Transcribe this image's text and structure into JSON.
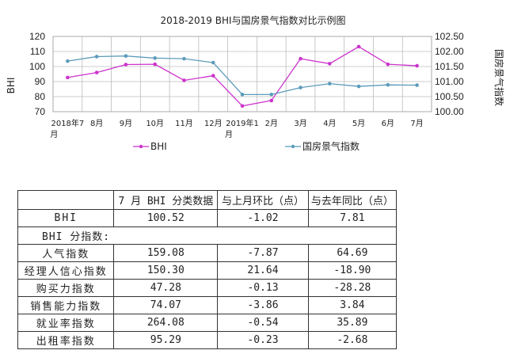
{
  "chart_data": {
    "type": "line",
    "title": "2018-2019 BHI与国房景气指数对比示例图",
    "categories": [
      "2018年7月",
      "8月",
      "9月",
      "10月",
      "11月",
      "12月",
      "2019年1月",
      "2月",
      "3月",
      "4月",
      "5月",
      "6月",
      "7月"
    ],
    "series": [
      {
        "name": "BHI",
        "axis": "left",
        "color": "#cc33cc",
        "values": [
          92.7,
          96.0,
          101.3,
          101.5,
          90.8,
          93.9,
          73.8,
          77.4,
          105.2,
          101.9,
          113.2,
          101.5,
          100.5
        ]
      },
      {
        "name": "国房景气指数",
        "axis": "right",
        "color": "#5b9bba",
        "values": [
          101.68,
          101.83,
          101.85,
          101.78,
          101.76,
          101.63,
          100.57,
          100.57,
          100.8,
          100.93,
          100.84,
          100.89,
          100.88
        ]
      }
    ],
    "ylabel": "BHI",
    "ylim": [
      70,
      120
    ],
    "yticks": [
      "120",
      "110",
      "100",
      "90",
      "80",
      "70"
    ],
    "y2label": "国房景气指数",
    "y2lim": [
      100.0,
      102.5
    ],
    "y2ticks": [
      "102.50",
      "102.00",
      "101.50",
      "101.00",
      "100.50",
      "100.00"
    ],
    "grid": true,
    "legend_position": "bottom"
  },
  "table": {
    "headers": [
      "",
      "7 月 BHI 分类数据",
      "与上月环比（点）",
      "与去年同比（点）"
    ],
    "rows": [
      {
        "label": "BHI",
        "values": [
          "100.52",
          "-1.02",
          "7.81"
        ]
      },
      {
        "label": "BHI 分指数:",
        "section": true
      },
      {
        "label": "人气指数",
        "values": [
          "159.08",
          "-7.87",
          "64.69"
        ]
      },
      {
        "label": "经理人信心指数",
        "values": [
          "150.30",
          "21.64",
          "-18.90"
        ]
      },
      {
        "label": "购买力指数",
        "values": [
          "47.28",
          "-0.13",
          "-28.28"
        ]
      },
      {
        "label": "销售能力指数",
        "values": [
          "74.07",
          "-3.86",
          "3.84"
        ]
      },
      {
        "label": "就业率指数",
        "values": [
          "264.08",
          "-0.54",
          "35.89"
        ]
      },
      {
        "label": "出租率指数",
        "values": [
          "95.29",
          "-0.23",
          "-2.68"
        ]
      }
    ]
  }
}
